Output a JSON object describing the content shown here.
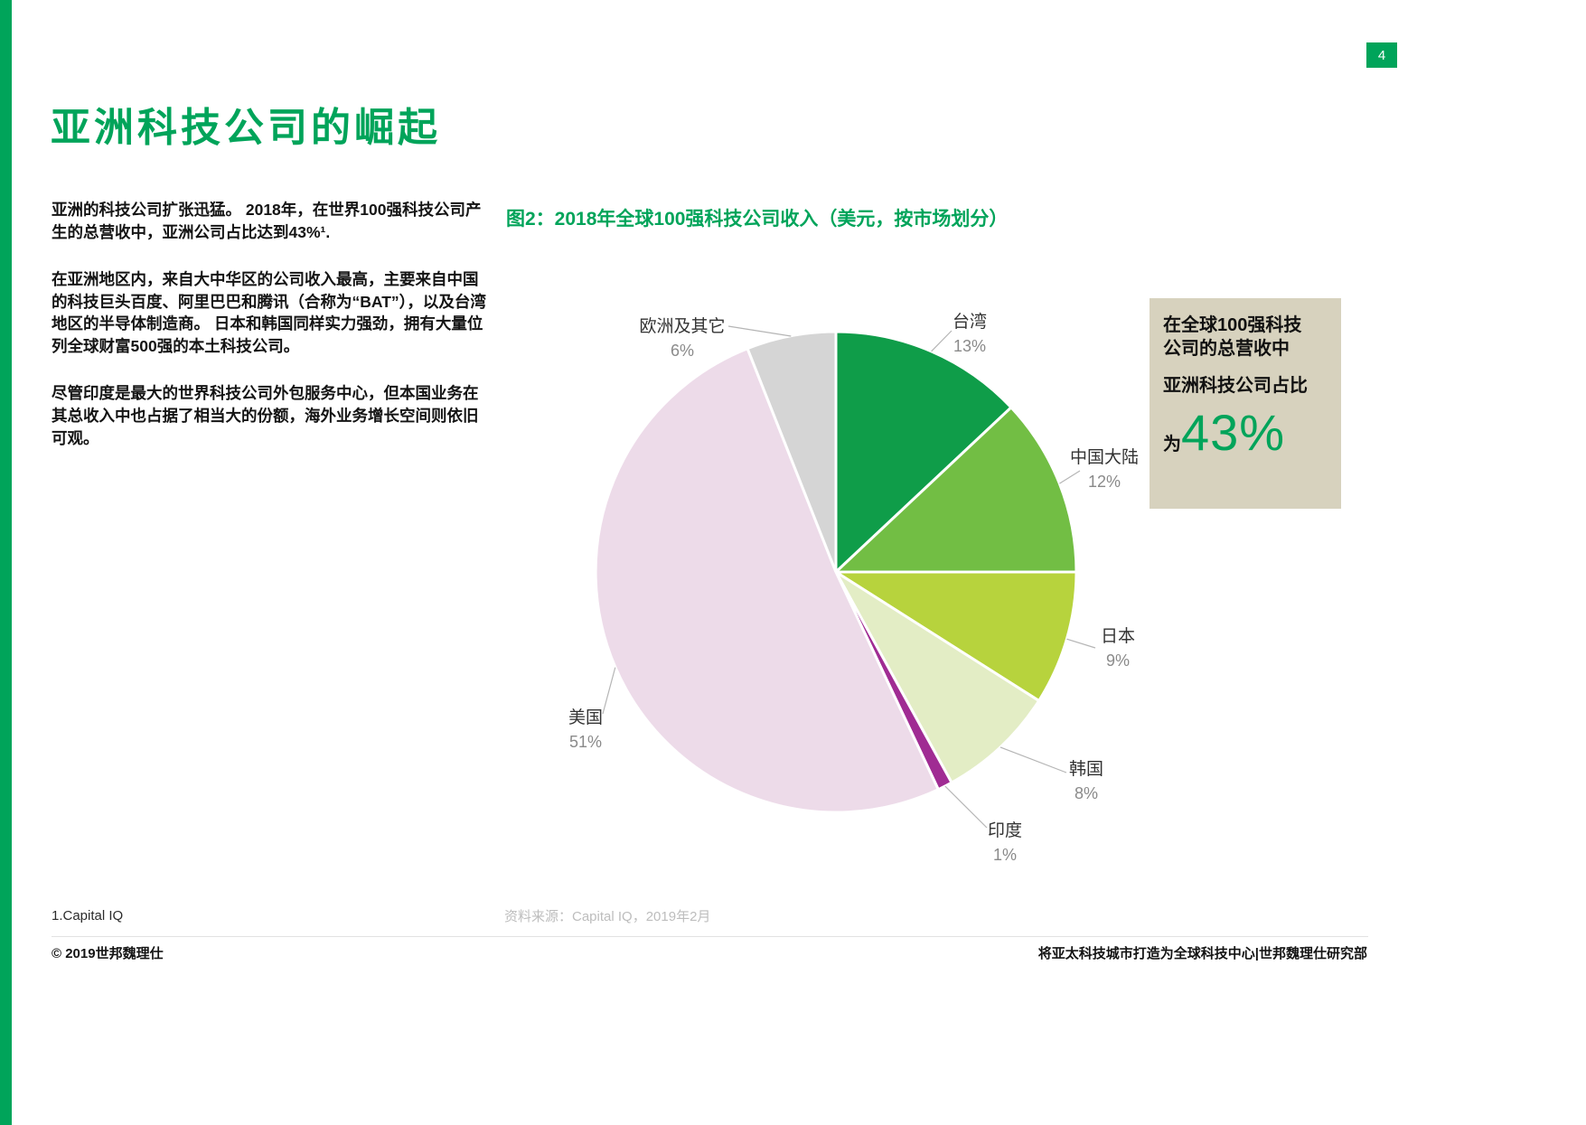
{
  "page": {
    "number": "4",
    "title": "亚洲科技公司的崛起"
  },
  "colors": {
    "brand_green": "#00A45A"
  },
  "intro": {
    "paragraphs": [
      "亚洲的科技公司扩张迅猛。 2018年，在世界100强科技公司产生的总营收中，亚洲公司占比达到43%¹.",
      "在亚洲地区内，来自大中华区的公司收入最高，主要来自中国的科技巨头百度、阿里巴巴和腾讯（合称为“BAT”），以及台湾地区的半导体制造商。 日本和韩国同样实力强劲，拥有大量位列全球财富500强的本土科技公司。",
      "尽管印度是最大的世界科技公司外包服务中心，但本国业务在其总收入中也占据了相当大的份额，海外业务增长空间则依旧可观。"
    ],
    "footnote": "1.Capital IQ"
  },
  "chart": {
    "title": "图2：2018年全球100强科技公司收入（美元，按市场划分）",
    "source": "资料来源：Capital IQ，2019年2月"
  },
  "chart_data": {
    "type": "pie",
    "title": "2018年全球100强科技公司收入（美元，按市场划分）",
    "unit": "%",
    "start_angle_deg": 0,
    "direction": "clockwise",
    "segments": [
      {
        "label": "台湾",
        "value": 13,
        "color": "#0F9D49"
      },
      {
        "label": "中国大陆",
        "value": 12,
        "color": "#72BE44"
      },
      {
        "label": "日本",
        "value": 9,
        "color": "#B7D33D"
      },
      {
        "label": "韩国",
        "value": 8,
        "color": "#E3EDC5"
      },
      {
        "label": "印度",
        "value": 1,
        "color": "#A02C93"
      },
      {
        "label": "美国",
        "value": 51,
        "color": "#EDDBE9"
      },
      {
        "label": "欧洲及其它",
        "value": 6,
        "color": "#D5D5D5"
      }
    ]
  },
  "callout": {
    "line1": "在全球100强科技",
    "line2": "公司的总营收中",
    "line3": "亚洲科技公司占比",
    "prefix": "为",
    "big_value": "43%",
    "background": "#D7D2BE"
  },
  "footer": {
    "copyright": "© 2019世邦魏理仕",
    "right": "将亚太科技城市打造为全球科技中心|世邦魏理仕研究部"
  }
}
